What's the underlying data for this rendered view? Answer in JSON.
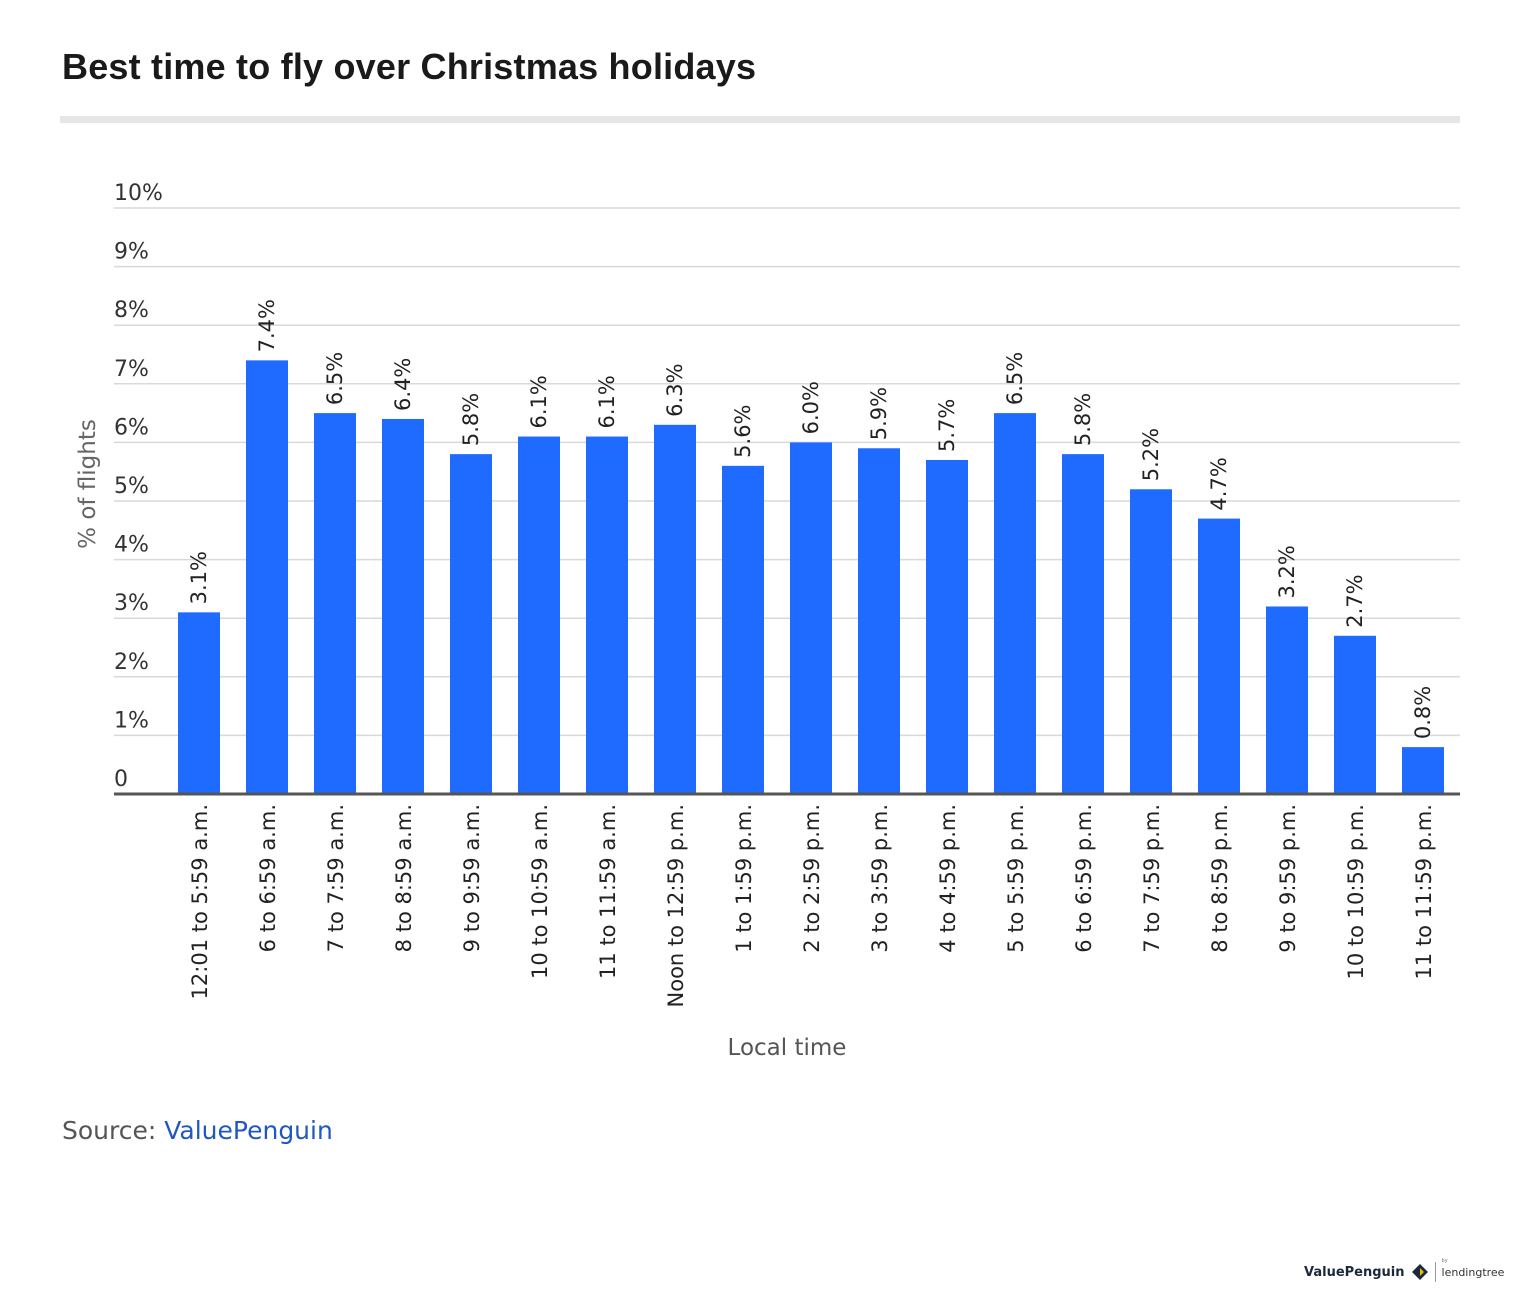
{
  "title": "Best time to fly over Christmas holidays",
  "source": {
    "label": "Source:",
    "link_text": "ValuePenguin"
  },
  "footer": {
    "brand": "ValuePenguin",
    "by": "by",
    "partner": "lendingtree"
  },
  "colors": {
    "bar": "#1f6bff",
    "grid": "#d9d9d9",
    "axis": "#555555",
    "link": "#1f57c3"
  },
  "chart_data": {
    "type": "bar",
    "title": "Best time to fly over Christmas holidays",
    "xlabel": "Local time",
    "ylabel": "% of flights",
    "ylim": [
      0,
      10
    ],
    "yticks": [
      "0",
      "1%",
      "2%",
      "3%",
      "4%",
      "5%",
      "6%",
      "7%",
      "8%",
      "9%",
      "10%"
    ],
    "grid": true,
    "categories": [
      "12:01 to 5:59 a.m.",
      "6 to 6:59 a.m.",
      "7 to 7:59 a.m.",
      "8 to 8:59 a.m.",
      "9 to 9:59 a.m.",
      "10 to 10:59 a.m.",
      "11 to 11:59 a.m.",
      "Noon to 12:59 p.m.",
      "1 to 1:59 p.m.",
      "2 to 2:59 p.m.",
      "3 to 3:59 p.m.",
      "4 to 4:59 p.m.",
      "5 to 5:59 p.m.",
      "6 to 6:59 p.m.",
      "7 to 7:59 p.m.",
      "8 to 8:59 p.m.",
      "9 to 9:59 p.m.",
      "10 to 10:59 p.m.",
      "11 to 11:59 p.m."
    ],
    "values": [
      3.1,
      7.4,
      6.5,
      6.4,
      5.8,
      6.1,
      6.1,
      6.3,
      5.6,
      6.0,
      5.9,
      5.7,
      6.5,
      5.8,
      5.2,
      4.7,
      3.2,
      2.7,
      0.8
    ],
    "value_labels": [
      "3.1%",
      "7.4%",
      "6.5%",
      "6.4%",
      "5.8%",
      "6.1%",
      "6.1%",
      "6.3%",
      "5.6%",
      "6.0%",
      "5.9%",
      "5.7%",
      "6.5%",
      "5.8%",
      "5.2%",
      "4.7%",
      "3.2%",
      "2.7%",
      "0.8%"
    ]
  }
}
